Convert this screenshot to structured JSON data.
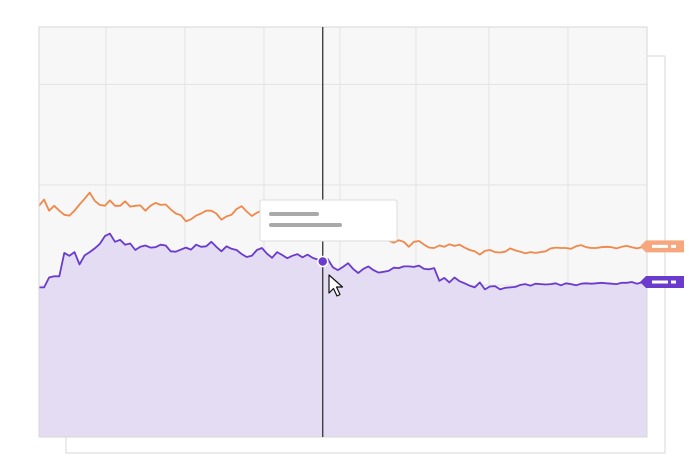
{
  "colors": {
    "background": "#ffffff",
    "plot_background": "#f6f7f6",
    "gridline": "#e2e4e4",
    "frame": "#d6d8d8",
    "orange_series": "#f0884a",
    "purple_series": "#6a3bcc",
    "purple_area": "#e3dcf2",
    "crosshair": "#333333",
    "tooltip_bar": "#a9a9a9",
    "orange_tag": "#f6a77e",
    "purple_tag": "#6a3bcc"
  },
  "icons": {
    "cursor": "mouse-pointer-icon"
  },
  "tooltip": {
    "visible": true,
    "text_redacted": true,
    "lines": 2
  },
  "legend_tags": [
    "orange-series-tag",
    "purple-series-tag"
  ],
  "chart_data": {
    "type": "line",
    "title": "",
    "xlabel": "",
    "ylabel": "",
    "x_range": [
      0,
      120
    ],
    "y_range": [
      0,
      100
    ],
    "grid": true,
    "area_fill_series": 1,
    "hover_index": 56,
    "series": [
      {
        "values": [
          56.4,
          57.9,
          55.2,
          56.4,
          55.2,
          54.2,
          54.0,
          55.2,
          56.7,
          58.1,
          59.6,
          57.6,
          56.6,
          56.4,
          57.7,
          56.4,
          56.4,
          57.5,
          56.2,
          56.4,
          56.5,
          55.2,
          56.4,
          57.1,
          56.6,
          56.7,
          55.5,
          54.5,
          54.1,
          52.6,
          53.1,
          54.0,
          54.5,
          55.2,
          55.2,
          54.5,
          53.0,
          53.8,
          54.2,
          55.6,
          56.3,
          55.0,
          53.9,
          54.7,
          55.2,
          55.4,
          54.5,
          53.4,
          53.1,
          53.6,
          54.2,
          54.2,
          52.8,
          51.8,
          51.5,
          50.7,
          50.5,
          51.0,
          52.4,
          52.5,
          51.1,
          50.4,
          50.6,
          50.9,
          50.9,
          49.3,
          47.9,
          47.9,
          48.3,
          47.9,
          47.4,
          48.0,
          47.6,
          46.4,
          47.6,
          47.8,
          46.9,
          46.2,
          46.1,
          46.7,
          46.4,
          47.0,
          46.6,
          46.9,
          46.2,
          45.6,
          45.3,
          44.5,
          45.4,
          45.6,
          45.1,
          45.0,
          45.2,
          46.0,
          45.5,
          45.2,
          44.8,
          45.1,
          44.9,
          45.1,
          45.3,
          46.0,
          46.2,
          46.1,
          46.1,
          45.9,
          46.5,
          46.8,
          46.3,
          46.1,
          46.1,
          46.3,
          46.4,
          46.3,
          46.0,
          46.4,
          46.6,
          46.3,
          46.0,
          46.3,
          46.5
        ]
      },
      {
        "values": [
          36.5,
          36.5,
          38.9,
          39.2,
          39.2,
          44.9,
          44.2,
          45.1,
          42.1,
          44.3,
          45.1,
          46.0,
          47.1,
          49.0,
          49.6,
          47.6,
          48.1,
          46.9,
          47.2,
          45.6,
          46.4,
          46.7,
          46.2,
          46.3,
          46.9,
          46.7,
          45.3,
          45.2,
          45.7,
          46.2,
          45.7,
          46.9,
          46.4,
          46.5,
          47.6,
          46.4,
          45.3,
          46.5,
          45.9,
          45.6,
          44.6,
          43.9,
          44.2,
          45.6,
          46.1,
          44.7,
          43.7,
          45.1,
          44.4,
          43.6,
          44.2,
          44.6,
          43.8,
          44.5,
          43.7,
          43.3,
          42.8,
          43.4,
          41.4,
          40.7,
          41.5,
          42.4,
          41.0,
          40.0,
          41.0,
          41.6,
          40.7,
          40.1,
          40.3,
          40.5,
          41.3,
          41.2,
          41.6,
          41.6,
          41.5,
          41.8,
          41.0,
          40.9,
          41.2,
          38.1,
          38.8,
          37.7,
          38.9,
          38.0,
          37.5,
          36.9,
          36.5,
          37.7,
          36.0,
          36.7,
          36.8,
          36.0,
          36.4,
          36.5,
          36.6,
          37.1,
          37.3,
          36.9,
          37.4,
          37.3,
          37.2,
          37.3,
          37.5,
          37.0,
          37.5,
          37.3,
          37.0,
          37.4,
          37.5,
          37.4,
          37.5,
          37.6,
          37.5,
          37.4,
          37.3,
          37.6,
          37.6,
          37.8,
          37.4,
          37.7,
          37.8
        ]
      }
    ]
  }
}
